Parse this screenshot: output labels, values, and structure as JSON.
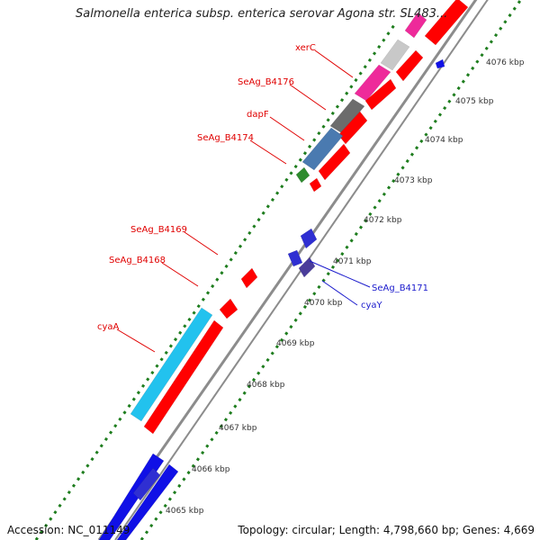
{
  "title": "Salmonella enterica subsp. enterica serovar Agona str. SL483...",
  "accession": "Accession: NC_011149",
  "summary": "Topology: circular; Length: 4,798,660 bp; Genes: 4,669",
  "colors": {
    "backbone": "#8c8c8c",
    "tick": "#1e7d1e",
    "red_gene": "#ff0000",
    "cyan_gene": "#22c2ee",
    "blue_gene": "#1010e6",
    "navy_gene": "#2f2fd2",
    "purple_gene": "#4a3c9a",
    "pink_gene": "#ee2a9a",
    "grey_gene": "#6c6c6c",
    "light_grey_gene": "#c8c8c8",
    "steel_gene": "#4a7ab0",
    "green_gene": "#2e8b2e",
    "red_label": "#e00000",
    "blue_label": "#1a1acc"
  },
  "scale_labels": [
    "4076 kbp",
    "4075 kbp",
    "4074 kbp",
    "4073 kbp",
    "4072 kbp",
    "4071 kbp",
    "4070 kbp",
    "4069 kbp",
    "4068 kbp",
    "4067 kbp",
    "4066 kbp",
    "4065 kbp"
  ],
  "gene_labels": [
    {
      "text": "xerC",
      "color": "red"
    },
    {
      "text": "SeAg_B4176",
      "color": "red"
    },
    {
      "text": "dapF",
      "color": "red"
    },
    {
      "text": "SeAg_B4174",
      "color": "red"
    },
    {
      "text": "SeAg_B4169",
      "color": "red"
    },
    {
      "text": "SeAg_B4168",
      "color": "red"
    },
    {
      "text": "cyaA",
      "color": "red"
    },
    {
      "text": "SeAg_B4171",
      "color": "blue"
    },
    {
      "text": "cyaY",
      "color": "blue"
    }
  ]
}
